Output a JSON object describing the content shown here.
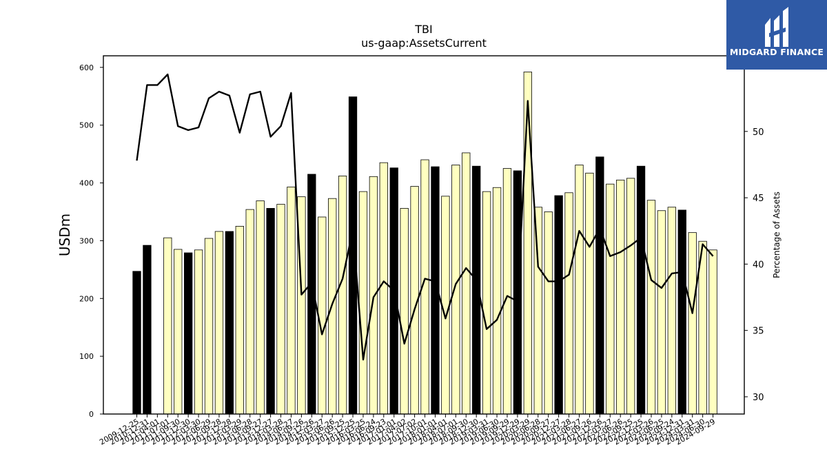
{
  "chart_data": {
    "type": "bar",
    "title": "TBI",
    "subtitle": "us-gaap:AssetsCurrent",
    "ylabel": "USDm",
    "y2label": "Percentage of Assets",
    "ylim": [
      0,
      620
    ],
    "y2lim": [
      28.7,
      55.7
    ],
    "yticks": [
      0,
      100,
      200,
      300,
      400,
      500,
      600
    ],
    "y2ticks": [
      30,
      35,
      40,
      45,
      50,
      55
    ],
    "xticks": [
      "2009-12-25",
      "2010-12-31",
      "2011-04-01",
      "2011-07-01",
      "2011-09-30",
      "2011-12-30",
      "2012-03-30",
      "2012-06-29",
      "2012-09-28",
      "2012-12-28",
      "2013-03-29",
      "2013-06-28",
      "2013-09-27",
      "2013-12-27",
      "2014-03-28",
      "2014-06-27",
      "2014-09-26",
      "2014-12-26",
      "2015-03-27",
      "2015-06-26",
      "2015-09-25",
      "2015-12-25",
      "2016-03-25",
      "2016-06-24",
      "2016-09-23",
      "2017-01-01",
      "2017-04-02",
      "2017-07-02",
      "2017-10-01",
      "2018-01-01",
      "2018-04-01",
      "2018-07-01",
      "2018-09-30",
      "2018-12-30",
      "2019-03-31",
      "2019-06-30",
      "2019-09-29",
      "2019-12-29",
      "2020-03-29",
      "2020-06-28",
      "2020-09-27",
      "2020-12-27",
      "2021-03-28",
      "2021-06-27",
      "2021-09-26",
      "2021-12-26",
      "2022-03-27",
      "2022-06-26",
      "2022-09-25",
      "2022-12-25",
      "2023-03-26",
      "2023-06-25",
      "2023-09-24",
      "2023-12-31",
      "2024-03-31",
      "2024-06-30",
      "2024-09-29"
    ],
    "series": [
      {
        "kind": "bar",
        "values": [
          247,
          292,
          null,
          305,
          285,
          279,
          284,
          304,
          316,
          316,
          325,
          354,
          369,
          356,
          363,
          393,
          376,
          415,
          341,
          373,
          412,
          549,
          385,
          411,
          435,
          426,
          356,
          394,
          440,
          428,
          377,
          431,
          452,
          429,
          385,
          392,
          425,
          421,
          592,
          358,
          350,
          378,
          383,
          431,
          417,
          445,
          398,
          405,
          408,
          429,
          370,
          352,
          358,
          353,
          314,
          299,
          284
        ],
        "highlight": [
          true,
          true,
          false,
          false,
          false,
          true,
          false,
          false,
          false,
          true,
          false,
          false,
          false,
          true,
          false,
          false,
          false,
          true,
          false,
          false,
          false,
          true,
          false,
          false,
          false,
          true,
          false,
          false,
          false,
          true,
          false,
          false,
          false,
          true,
          false,
          false,
          false,
          true,
          false,
          false,
          false,
          true,
          false,
          false,
          false,
          true,
          false,
          false,
          false,
          true,
          false,
          false,
          false,
          true,
          false,
          false,
          false
        ],
        "color": "#ffffc0",
        "highlight_color": "#000000"
      },
      {
        "kind": "line",
        "axis": "right",
        "color": "#000000",
        "values": [
          47.8,
          53.5,
          53.5,
          54.3,
          50.4,
          50.1,
          50.3,
          52.5,
          53.0,
          52.7,
          49.9,
          52.8,
          53.0,
          49.6,
          50.4,
          52.9,
          37.7,
          38.6,
          34.7,
          37.0,
          38.9,
          42.6,
          32.8,
          37.5,
          38.7,
          38.0,
          34.0,
          36.6,
          38.9,
          38.7,
          35.9,
          38.5,
          39.7,
          38.8,
          35.1,
          35.8,
          37.6,
          37.2,
          52.3,
          39.8,
          38.7,
          38.7,
          39.2,
          42.5,
          41.3,
          42.7,
          40.6,
          40.9,
          41.4,
          42.0,
          38.8,
          38.2,
          39.3,
          39.4,
          36.3,
          41.5,
          40.6
        ]
      }
    ]
  },
  "logo": {
    "text": "MIDGARD FINANCE"
  }
}
